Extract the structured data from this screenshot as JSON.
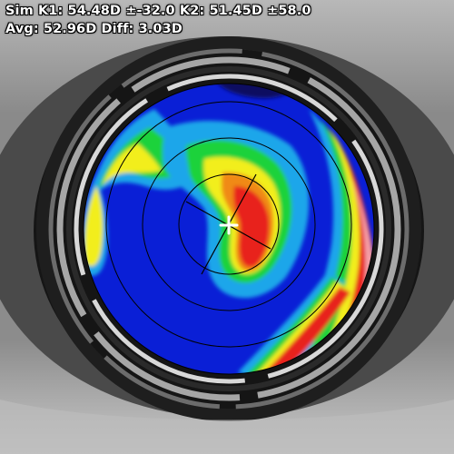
{
  "readout": {
    "line1": "Sim K1: 54.48D ±-32.0 K2: 51.45D ±58.0",
    "line2": "Avg: 52.96D Diff: 3.03D"
  },
  "map": {
    "rings": 4,
    "axis_angle_deg": -32.0
  },
  "colors": {
    "blue": "#0a1fd6",
    "cyan": "#1aa6ea",
    "green": "#1bd23a",
    "yellow": "#f2ee1c",
    "orange": "#f08a12",
    "red": "#e8241c",
    "pink": "#f4a0a8",
    "ring": "#000000",
    "center-mark": "#ffffff"
  }
}
